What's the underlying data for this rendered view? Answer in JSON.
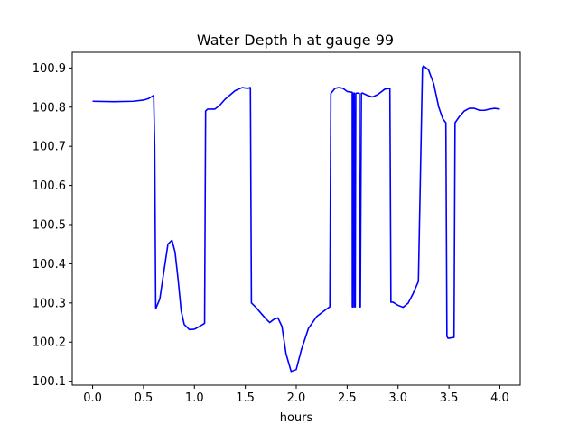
{
  "chart_data": {
    "type": "line",
    "title": "Water Depth h at gauge 99",
    "xlabel": "hours",
    "ylabel": "",
    "xlim": [
      -0.2,
      4.2
    ],
    "ylim": [
      100.09,
      100.94
    ],
    "xticks": [
      0.0,
      0.5,
      1.0,
      1.5,
      2.0,
      2.5,
      3.0,
      3.5,
      4.0
    ],
    "xtick_labels": [
      "0.0",
      "0.5",
      "1.0",
      "1.5",
      "2.0",
      "2.5",
      "3.0",
      "3.5",
      "4.0"
    ],
    "yticks": [
      100.1,
      100.2,
      100.3,
      100.4,
      100.5,
      100.6,
      100.7,
      100.8,
      100.9
    ],
    "ytick_labels": [
      "100.1",
      "100.2",
      "100.3",
      "100.4",
      "100.5",
      "100.6",
      "100.7",
      "100.8",
      "100.9"
    ],
    "grid": false,
    "series": [
      {
        "color": "#0000ff",
        "x": [
          0.0,
          0.2,
          0.4,
          0.5,
          0.55,
          0.6,
          0.61,
          0.62,
          0.66,
          0.7,
          0.74,
          0.78,
          0.81,
          0.84,
          0.87,
          0.9,
          0.95,
          1.0,
          1.05,
          1.1,
          1.11,
          1.13,
          1.2,
          1.25,
          1.3,
          1.4,
          1.47,
          1.52,
          1.55,
          1.56,
          1.6,
          1.7,
          1.74,
          1.78,
          1.82,
          1.86,
          1.9,
          1.95,
          2.0,
          2.05,
          2.12,
          2.2,
          2.3,
          2.33,
          2.34,
          2.38,
          2.42,
          2.46,
          2.5,
          2.55,
          2.551,
          2.56,
          2.561,
          2.57,
          2.575,
          2.58,
          2.585,
          2.6,
          2.62,
          2.625,
          2.63,
          2.64,
          2.65,
          2.7,
          2.75,
          2.8,
          2.87,
          2.92,
          2.93,
          2.95,
          3.0,
          3.05,
          3.1,
          3.15,
          3.2,
          3.24,
          3.25,
          3.3,
          3.35,
          3.4,
          3.44,
          3.47,
          3.48,
          3.49,
          3.5,
          3.55,
          3.56,
          3.6,
          3.65,
          3.7,
          3.75,
          3.8,
          3.85,
          3.9,
          3.95,
          4.0
        ],
        "values": [
          100.815,
          100.814,
          100.815,
          100.818,
          100.822,
          100.83,
          100.7,
          100.285,
          100.31,
          100.38,
          100.45,
          100.46,
          100.43,
          100.36,
          100.28,
          100.245,
          100.232,
          100.233,
          100.24,
          100.248,
          100.79,
          100.795,
          100.795,
          100.805,
          100.82,
          100.842,
          100.85,
          100.848,
          100.85,
          100.3,
          100.29,
          100.26,
          100.25,
          100.258,
          100.262,
          100.24,
          100.17,
          100.125,
          100.13,
          100.18,
          100.235,
          100.265,
          100.285,
          100.29,
          100.835,
          100.848,
          100.85,
          100.848,
          100.84,
          100.838,
          100.29,
          100.29,
          100.835,
          100.836,
          100.29,
          100.29,
          100.835,
          100.836,
          100.835,
          100.29,
          100.29,
          100.835,
          100.836,
          100.83,
          100.826,
          100.832,
          100.846,
          100.848,
          100.302,
          100.302,
          100.294,
          100.289,
          100.3,
          100.325,
          100.355,
          100.9,
          100.905,
          100.895,
          100.86,
          100.8,
          100.77,
          100.76,
          100.215,
          100.21,
          100.21,
          100.212,
          100.76,
          100.775,
          100.79,
          100.797,
          100.797,
          100.792,
          100.792,
          100.795,
          100.797,
          100.795
        ]
      }
    ]
  }
}
